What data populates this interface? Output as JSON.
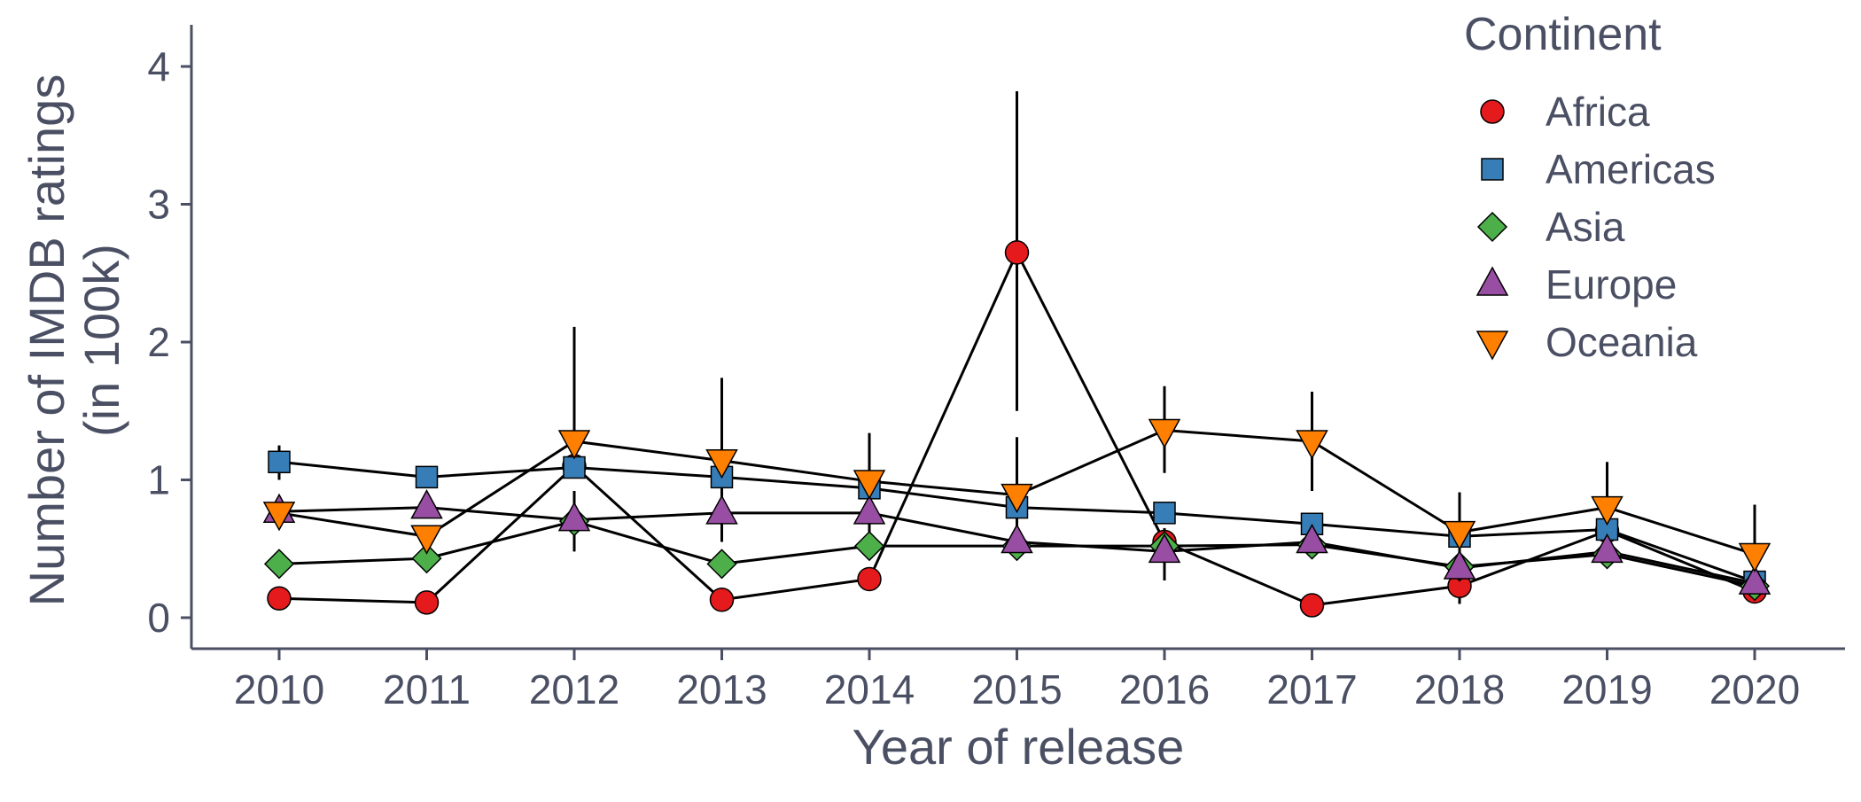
{
  "chart_data": {
    "type": "line",
    "title": "",
    "xlabel": "Year of release",
    "ylabel_line1": "Number of IMDB ratings",
    "ylabel_line2": "(in 100k)",
    "x": [
      2010,
      2011,
      2012,
      2013,
      2014,
      2015,
      2016,
      2017,
      2018,
      2019,
      2020
    ],
    "xticks": [
      "2010",
      "2011",
      "2012",
      "2013",
      "2014",
      "2015",
      "2016",
      "2017",
      "2018",
      "2019",
      "2020"
    ],
    "yticks": [
      "0",
      "1",
      "2",
      "3",
      "4"
    ],
    "ylim": [
      -0.2,
      4.3
    ],
    "grid": false,
    "legend": {
      "title": "Continent",
      "position": "top-right"
    },
    "series": [
      {
        "name": "Africa",
        "shape": "circle",
        "color": "#E41A1C",
        "values": [
          0.14,
          0.11,
          1.1,
          0.13,
          0.28,
          2.65,
          0.55,
          0.09,
          0.23,
          0.63,
          0.19
        ],
        "err_low": [
          null,
          null,
          null,
          null,
          null,
          1.5,
          null,
          null,
          null,
          null,
          null
        ],
        "err_high": [
          null,
          null,
          null,
          null,
          null,
          3.82,
          null,
          null,
          null,
          null,
          null
        ]
      },
      {
        "name": "Americas",
        "shape": "square",
        "color": "#377EB8",
        "values": [
          1.13,
          1.02,
          1.09,
          1.02,
          0.94,
          0.8,
          0.76,
          0.68,
          0.59,
          0.64,
          0.26
        ],
        "err_low": [
          1.0,
          null,
          null,
          null,
          null,
          null,
          null,
          null,
          null,
          null,
          null
        ],
        "err_high": [
          1.25,
          null,
          null,
          null,
          null,
          null,
          null,
          null,
          null,
          null,
          null
        ]
      },
      {
        "name": "Asia",
        "shape": "diamond",
        "color": "#4DAF4A",
        "values": [
          0.39,
          0.43,
          0.7,
          0.39,
          0.52,
          0.52,
          0.52,
          0.53,
          0.37,
          0.46,
          0.23
        ],
        "err_low": [
          null,
          null,
          0.48,
          null,
          null,
          null,
          null,
          null,
          null,
          null,
          null
        ],
        "err_high": [
          null,
          null,
          0.92,
          null,
          null,
          null,
          null,
          null,
          null,
          null,
          null
        ]
      },
      {
        "name": "Europe",
        "shape": "triangle-up",
        "color": "#984EA3",
        "values": [
          0.77,
          0.8,
          0.71,
          0.76,
          0.76,
          0.55,
          0.48,
          0.55,
          0.36,
          0.48,
          0.25
        ],
        "err_low": [
          null,
          null,
          null,
          null,
          null,
          null,
          0.27,
          null,
          null,
          null,
          null
        ],
        "err_high": [
          null,
          null,
          null,
          null,
          null,
          null,
          0.65,
          null,
          null,
          null,
          null
        ]
      },
      {
        "name": "Oceania",
        "shape": "triangle-down",
        "color": "#FF7F00",
        "values": [
          0.76,
          0.59,
          1.28,
          1.14,
          0.99,
          0.89,
          1.36,
          1.28,
          0.62,
          0.8,
          0.46
        ],
        "err_low": [
          null,
          0.55,
          null,
          0.55,
          0.6,
          0.5,
          1.05,
          0.92,
          0.1,
          0.4,
          0.15
        ],
        "err_high": [
          null,
          null,
          2.11,
          1.74,
          1.34,
          1.31,
          1.68,
          1.64,
          0.91,
          1.13,
          0.82
        ]
      }
    ]
  }
}
